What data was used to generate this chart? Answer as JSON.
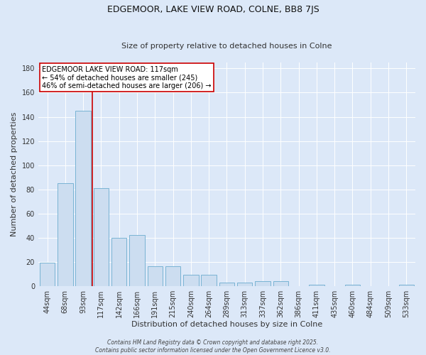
{
  "title": "EDGEMOOR, LAKE VIEW ROAD, COLNE, BB8 7JS",
  "subtitle": "Size of property relative to detached houses in Colne",
  "xlabel": "Distribution of detached houses by size in Colne",
  "ylabel": "Number of detached properties",
  "categories": [
    "44sqm",
    "68sqm",
    "93sqm",
    "117sqm",
    "142sqm",
    "166sqm",
    "191sqm",
    "215sqm",
    "240sqm",
    "264sqm",
    "289sqm",
    "313sqm",
    "337sqm",
    "362sqm",
    "386sqm",
    "411sqm",
    "435sqm",
    "460sqm",
    "484sqm",
    "509sqm",
    "533sqm"
  ],
  "values": [
    19,
    85,
    145,
    81,
    40,
    42,
    16,
    16,
    9,
    9,
    3,
    3,
    4,
    4,
    0,
    1,
    0,
    1,
    0,
    0,
    1
  ],
  "bar_color": "#ccddf0",
  "bar_edge_color": "#6aaccf",
  "vline_x": 2.5,
  "vline_color": "#cc0000",
  "annotation_text": "EDGEMOOR LAKE VIEW ROAD: 117sqm\n← 54% of detached houses are smaller (245)\n46% of semi-detached houses are larger (206) →",
  "annotation_box_color": "#ffffff",
  "annotation_box_edge": "#cc0000",
  "background_color": "#dce8f8",
  "ylim": [
    0,
    185
  ],
  "yticks": [
    0,
    20,
    40,
    60,
    80,
    100,
    120,
    140,
    160,
    180
  ],
  "title_fontsize": 9,
  "subtitle_fontsize": 8,
  "axis_label_fontsize": 8,
  "tick_fontsize": 7,
  "annot_fontsize": 7,
  "footer_text": "Contains HM Land Registry data © Crown copyright and database right 2025.\nContains public sector information licensed under the Open Government Licence v3.0.",
  "footer_fontsize": 5.5
}
